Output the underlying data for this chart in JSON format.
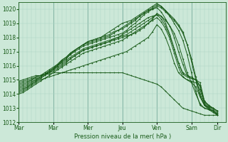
{
  "bg_color": "#cce8d8",
  "plot_bg_color": "#cce8d8",
  "grid_color_minor": "#aad4c4",
  "grid_color_major": "#88b8a8",
  "line_color": "#1a5c1a",
  "ylim": [
    1012,
    1020.5
  ],
  "yticks": [
    1012,
    1013,
    1014,
    1015,
    1016,
    1017,
    1018,
    1019,
    1020
  ],
  "xlabel": "Pression niveau de la mer( hPa )",
  "day_labels": [
    "Mar",
    "Mar",
    "Mer",
    "Jeu",
    "Ven",
    "Sam",
    "Dir"
  ],
  "day_positions": [
    0,
    24,
    48,
    72,
    96,
    120,
    138
  ],
  "xlim": [
    0,
    144
  ],
  "series": [
    {
      "x": [
        0,
        3,
        6,
        9,
        12,
        15,
        18,
        21,
        24,
        27,
        30,
        33,
        36,
        39,
        42,
        45,
        48,
        51,
        54,
        57,
        60,
        63,
        66,
        69,
        72,
        75,
        78,
        81,
        84,
        87,
        90,
        93,
        96,
        99,
        102,
        105,
        108,
        111,
        114,
        117,
        120,
        123,
        126,
        129,
        132,
        135,
        138
      ],
      "y": [
        1014.7,
        1014.8,
        1014.9,
        1015.0,
        1015.1,
        1015.2,
        1015.4,
        1015.6,
        1015.8,
        1016.0,
        1016.3,
        1016.5,
        1016.8,
        1017.0,
        1017.2,
        1017.4,
        1017.5,
        1017.6,
        1017.7,
        1017.8,
        1017.9,
        1018.0,
        1018.1,
        1018.2,
        1018.3,
        1018.5,
        1018.8,
        1019.0,
        1019.3,
        1019.6,
        1019.8,
        1020.0,
        1020.2,
        1020.1,
        1019.8,
        1019.5,
        1019.2,
        1018.8,
        1018.3,
        1017.5,
        1016.5,
        1015.2,
        1014.0,
        1013.2,
        1013.0,
        1012.8,
        1012.5
      ]
    },
    {
      "x": [
        0,
        3,
        6,
        9,
        12,
        15,
        18,
        21,
        24,
        27,
        30,
        33,
        36,
        39,
        42,
        45,
        48,
        51,
        54,
        57,
        60,
        63,
        66,
        69,
        72,
        75,
        78,
        81,
        84,
        87,
        90,
        93,
        96,
        99,
        102,
        105,
        108,
        111,
        114,
        117,
        120,
        123,
        126,
        129,
        132,
        135,
        138
      ],
      "y": [
        1014.5,
        1014.6,
        1014.7,
        1014.9,
        1015.0,
        1015.2,
        1015.4,
        1015.6,
        1015.8,
        1016.1,
        1016.4,
        1016.6,
        1016.9,
        1017.1,
        1017.3,
        1017.5,
        1017.7,
        1017.8,
        1017.9,
        1018.0,
        1018.1,
        1018.2,
        1018.4,
        1018.5,
        1018.6,
        1018.8,
        1019.0,
        1019.2,
        1019.5,
        1019.7,
        1019.9,
        1020.1,
        1020.3,
        1020.2,
        1019.9,
        1019.6,
        1019.3,
        1018.9,
        1018.4,
        1017.5,
        1016.3,
        1015.0,
        1013.8,
        1013.2,
        1013.1,
        1013.0,
        1012.8
      ]
    },
    {
      "x": [
        0,
        3,
        6,
        9,
        12,
        15,
        18,
        21,
        24,
        27,
        30,
        33,
        36,
        39,
        42,
        45,
        48,
        51,
        54,
        57,
        60,
        63,
        66,
        69,
        72,
        75,
        78,
        81,
        84,
        87,
        90,
        93,
        96,
        99,
        102,
        105,
        108,
        111,
        114,
        117,
        120,
        123,
        126,
        129,
        132,
        135,
        138
      ],
      "y": [
        1014.3,
        1014.4,
        1014.5,
        1014.7,
        1014.9,
        1015.1,
        1015.3,
        1015.5,
        1015.7,
        1016.0,
        1016.3,
        1016.5,
        1016.8,
        1017.1,
        1017.3,
        1017.5,
        1017.7,
        1017.8,
        1017.9,
        1018.0,
        1018.2,
        1018.4,
        1018.6,
        1018.8,
        1019.0,
        1019.1,
        1019.2,
        1019.4,
        1019.6,
        1019.8,
        1020.0,
        1020.2,
        1020.4,
        1020.2,
        1019.9,
        1019.5,
        1019.0,
        1018.5,
        1017.8,
        1016.8,
        1015.5,
        1014.2,
        1013.2,
        1013.0,
        1012.9,
        1012.8,
        1012.6
      ]
    },
    {
      "x": [
        0,
        3,
        6,
        9,
        12,
        15,
        18,
        21,
        24,
        27,
        30,
        33,
        36,
        39,
        42,
        45,
        48,
        51,
        54,
        57,
        60,
        63,
        66,
        69,
        72,
        75,
        78,
        81,
        84,
        87,
        90,
        93,
        96,
        99,
        102,
        105,
        108,
        111,
        114,
        117,
        120,
        123,
        126,
        129,
        132,
        135,
        138
      ],
      "y": [
        1014.6,
        1014.7,
        1014.8,
        1015.0,
        1015.2,
        1015.3,
        1015.5,
        1015.7,
        1015.9,
        1016.1,
        1016.4,
        1016.6,
        1016.9,
        1017.1,
        1017.3,
        1017.5,
        1017.6,
        1017.7,
        1017.8,
        1017.9,
        1018.0,
        1018.1,
        1018.3,
        1018.5,
        1018.7,
        1018.9,
        1019.1,
        1019.3,
        1019.5,
        1019.7,
        1019.9,
        1020.0,
        1020.1,
        1019.8,
        1019.3,
        1018.8,
        1018.0,
        1017.0,
        1016.1,
        1015.3,
        1015.1,
        1015.0,
        1014.8,
        1013.5,
        1013.2,
        1013.0,
        1012.8
      ]
    },
    {
      "x": [
        0,
        3,
        6,
        9,
        12,
        15,
        18,
        21,
        24,
        27,
        30,
        33,
        36,
        39,
        42,
        45,
        48,
        51,
        54,
        57,
        60,
        63,
        66,
        69,
        72,
        75,
        78,
        81,
        84,
        87,
        90,
        93,
        96,
        99,
        102,
        105,
        108,
        111,
        114,
        117,
        120,
        123,
        126,
        129,
        132,
        135,
        138
      ],
      "y": [
        1014.8,
        1014.9,
        1015.0,
        1015.1,
        1015.2,
        1015.3,
        1015.4,
        1015.5,
        1015.6,
        1015.8,
        1016.0,
        1016.2,
        1016.5,
        1016.7,
        1016.9,
        1017.1,
        1017.2,
        1017.3,
        1017.4,
        1017.5,
        1017.6,
        1017.7,
        1017.9,
        1018.0,
        1018.2,
        1018.4,
        1018.6,
        1018.8,
        1019.0,
        1019.2,
        1019.4,
        1019.5,
        1019.6,
        1019.5,
        1019.2,
        1018.8,
        1018.3,
        1017.5,
        1016.5,
        1015.5,
        1014.8,
        1014.0,
        1013.3,
        1013.0,
        1012.9,
        1012.8,
        1012.6
      ]
    },
    {
      "x": [
        0,
        3,
        6,
        9,
        12,
        15,
        18,
        21,
        24,
        27,
        30,
        33,
        36,
        39,
        42,
        45,
        48,
        51,
        54,
        57,
        60,
        63,
        66,
        69,
        72,
        75,
        78,
        81,
        84,
        87,
        90,
        93,
        96,
        99,
        102,
        105,
        108,
        111,
        114,
        117,
        120,
        123,
        126,
        129,
        132,
        135,
        138
      ],
      "y": [
        1014.2,
        1014.3,
        1014.5,
        1014.7,
        1014.9,
        1015.1,
        1015.3,
        1015.5,
        1015.7,
        1015.9,
        1016.1,
        1016.3,
        1016.5,
        1016.7,
        1016.9,
        1017.1,
        1017.2,
        1017.3,
        1017.4,
        1017.5,
        1017.6,
        1017.7,
        1017.8,
        1017.9,
        1018.0,
        1018.1,
        1018.2,
        1018.3,
        1018.5,
        1018.7,
        1019.0,
        1019.3,
        1019.7,
        1019.5,
        1019.0,
        1018.2,
        1017.2,
        1016.2,
        1015.4,
        1015.2,
        1015.1,
        1015.0,
        1014.5,
        1013.5,
        1013.2,
        1013.0,
        1012.8
      ]
    },
    {
      "x": [
        0,
        3,
        6,
        9,
        12,
        15,
        18,
        21,
        24,
        27,
        30,
        33,
        36,
        39,
        42,
        45,
        48,
        51,
        54,
        57,
        60,
        63,
        66,
        69,
        72,
        75,
        78,
        81,
        84,
        87,
        90,
        93,
        96,
        99,
        102,
        105,
        108,
        111,
        114,
        117,
        120,
        123,
        126,
        129,
        132,
        135,
        138
      ],
      "y": [
        1014.4,
        1014.5,
        1014.6,
        1014.8,
        1015.0,
        1015.2,
        1015.4,
        1015.6,
        1015.8,
        1016.0,
        1016.2,
        1016.4,
        1016.6,
        1016.8,
        1017.0,
        1017.2,
        1017.3,
        1017.4,
        1017.5,
        1017.6,
        1017.7,
        1017.8,
        1017.9,
        1018.0,
        1018.1,
        1018.2,
        1018.4,
        1018.6,
        1018.8,
        1019.0,
        1019.2,
        1019.4,
        1019.6,
        1019.3,
        1018.8,
        1018.1,
        1017.2,
        1016.2,
        1015.5,
        1015.3,
        1015.2,
        1015.0,
        1014.6,
        1013.4,
        1013.1,
        1012.9,
        1012.7
      ]
    },
    {
      "x": [
        0,
        3,
        6,
        9,
        12,
        15,
        18,
        21,
        24,
        27,
        30,
        33,
        36,
        39,
        42,
        45,
        48,
        51,
        54,
        57,
        60,
        63,
        66,
        69,
        72,
        75,
        78,
        81,
        84,
        87,
        90,
        93,
        96,
        99,
        102,
        105,
        108,
        111,
        114,
        117,
        120,
        123,
        126,
        129,
        132,
        135,
        138
      ],
      "y": [
        1014.0,
        1014.1,
        1014.3,
        1014.5,
        1014.7,
        1014.9,
        1015.1,
        1015.3,
        1015.5,
        1015.7,
        1015.9,
        1016.1,
        1016.3,
        1016.5,
        1016.7,
        1016.9,
        1017.0,
        1017.1,
        1017.2,
        1017.3,
        1017.4,
        1017.5,
        1017.6,
        1017.7,
        1017.8,
        1018.0,
        1018.2,
        1018.4,
        1018.6,
        1018.8,
        1019.0,
        1019.2,
        1019.4,
        1019.1,
        1018.6,
        1017.9,
        1016.9,
        1015.9,
        1015.2,
        1015.0,
        1014.9,
        1014.8,
        1014.3,
        1013.3,
        1013.0,
        1012.8,
        1012.6
      ]
    },
    {
      "x": [
        0,
        3,
        6,
        9,
        12,
        15,
        18,
        21,
        24,
        27,
        30,
        33,
        36,
        39,
        42,
        45,
        48,
        51,
        54,
        57,
        60,
        63,
        66,
        69,
        72,
        75,
        78,
        81,
        84,
        87,
        90,
        93,
        96,
        99,
        102,
        105,
        108,
        111,
        114,
        117,
        120,
        123,
        126,
        129,
        132,
        135,
        138
      ],
      "y": [
        1014.1,
        1014.2,
        1014.4,
        1014.6,
        1014.8,
        1015.0,
        1015.1,
        1015.2,
        1015.3,
        1015.4,
        1015.5,
        1015.6,
        1015.7,
        1015.8,
        1015.9,
        1016.0,
        1016.1,
        1016.2,
        1016.3,
        1016.4,
        1016.5,
        1016.6,
        1016.7,
        1016.8,
        1016.9,
        1017.0,
        1017.2,
        1017.4,
        1017.6,
        1017.8,
        1018.0,
        1018.4,
        1018.9,
        1018.6,
        1018.0,
        1017.2,
        1016.2,
        1015.5,
        1015.2,
        1015.0,
        1014.8,
        1014.5,
        1013.8,
        1013.2,
        1012.9,
        1012.7,
        1012.5
      ]
    },
    {
      "x": [
        0,
        3,
        6,
        9,
        12,
        15,
        18,
        21,
        24,
        27,
        30,
        33,
        36,
        39,
        42,
        45,
        48,
        51,
        54,
        57,
        60,
        63,
        66,
        69,
        72,
        75,
        78,
        81,
        84,
        87,
        90,
        93,
        96,
        99,
        102,
        105,
        108,
        111,
        114,
        117,
        120,
        123,
        126,
        129,
        132,
        135,
        138
      ],
      "y": [
        1014.9,
        1015.0,
        1015.1,
        1015.2,
        1015.3,
        1015.3,
        1015.4,
        1015.4,
        1015.5,
        1015.5,
        1015.5,
        1015.5,
        1015.5,
        1015.5,
        1015.5,
        1015.5,
        1015.5,
        1015.5,
        1015.5,
        1015.5,
        1015.5,
        1015.5,
        1015.5,
        1015.5,
        1015.5,
        1015.4,
        1015.3,
        1015.2,
        1015.1,
        1015.0,
        1014.9,
        1014.8,
        1014.7,
        1014.5,
        1014.2,
        1013.9,
        1013.6,
        1013.3,
        1013.0,
        1012.9,
        1012.8,
        1012.7,
        1012.6,
        1012.5,
        1012.5,
        1012.5,
        1012.5
      ]
    }
  ],
  "marker": "+",
  "markersize": 2,
  "linewidth": 0.7,
  "axis_fontsize": 6,
  "tick_fontsize": 5.5
}
